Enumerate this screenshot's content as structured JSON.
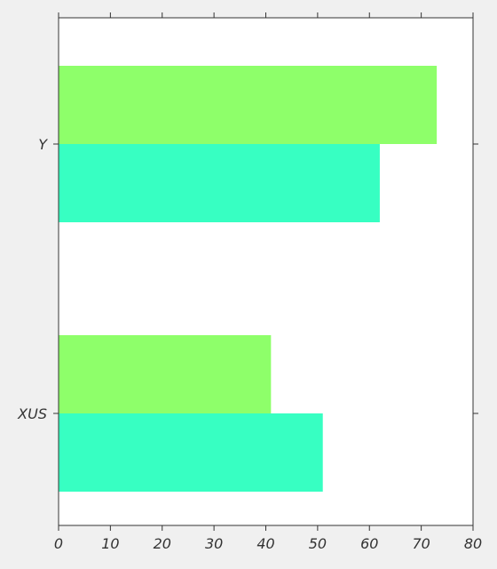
{
  "chart_data": {
    "type": "bar",
    "orientation": "horizontal",
    "categories": [
      "XUS",
      "Y"
    ],
    "series": [
      {
        "values": [
          41,
          73
        ],
        "color": "#8eff6a"
      },
      {
        "values": [
          51,
          62
        ],
        "color": "#37ffc2"
      }
    ],
    "title": "",
    "xlabel": "",
    "ylabel": "",
    "xlim": [
      0,
      80
    ],
    "xticks": [
      0,
      10,
      20,
      30,
      40,
      50,
      60,
      70,
      80
    ],
    "grid": false,
    "legend": "none"
  },
  "colors": {
    "page_background": "#f0f0f0",
    "plot_background": "#ffffff",
    "axis": "#333333"
  }
}
